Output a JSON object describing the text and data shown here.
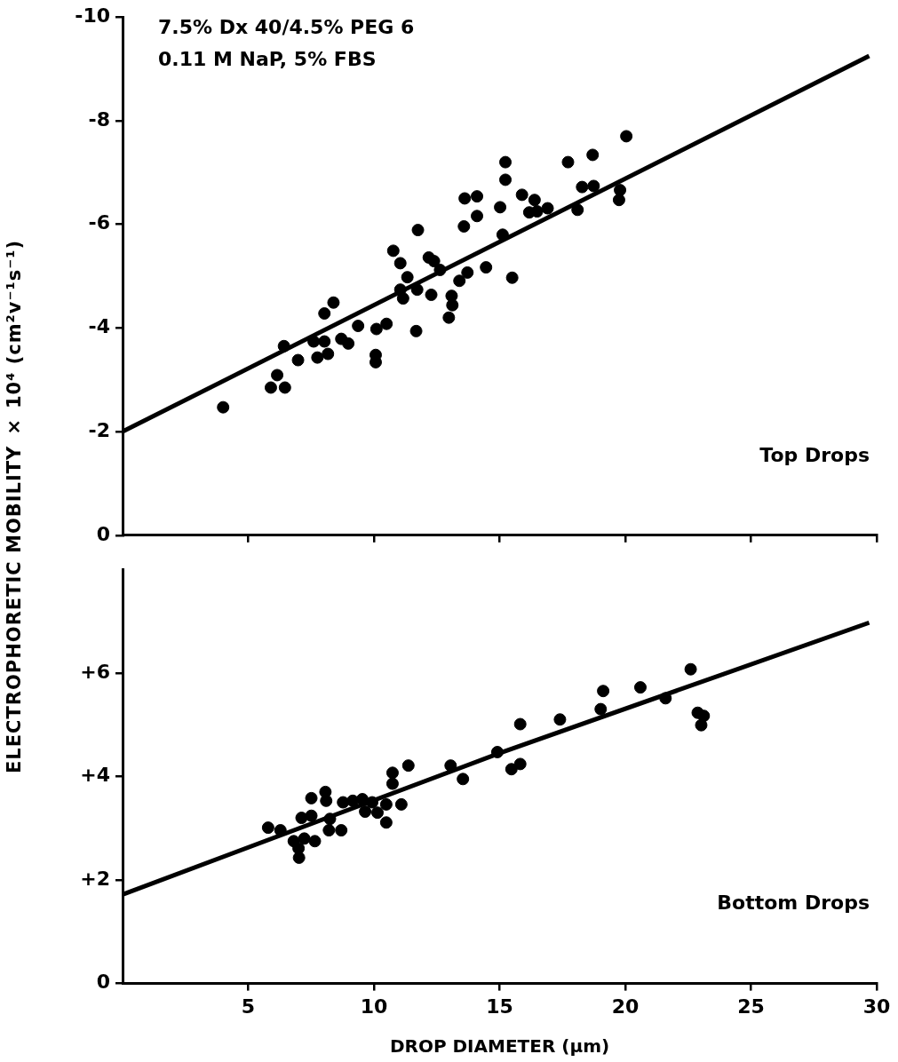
{
  "chart_data": [
    {
      "type": "scatter",
      "ylabel": "ELECTROPHORETIC MOBILITY × 10⁴ (cm²v⁻¹s⁻¹)",
      "annotations": [
        "7.5% Dx 40/4.5% PEG 6",
        "0.11 M NaP, 5% FBS",
        "Top Drops"
      ],
      "xlim": [
        0,
        30
      ],
      "xticks": [
        5,
        10,
        15,
        20,
        25,
        30
      ],
      "ylim": [
        0,
        -10
      ],
      "yticks": [
        0,
        -2,
        -4,
        -6,
        -8,
        -10
      ],
      "tick_labels": "y",
      "grid": false,
      "legend": false,
      "marker": "circle",
      "series": [
        {
          "type": "scatter",
          "color": "#000000",
          "x": [
            4.0,
            5.9,
            6.46,
            6.15,
            6.42,
            6.98,
            7.75,
            8.17,
            8.03,
            8.03,
            8.39,
            7.6,
            8.7,
            8.98,
            9.37,
            10.07,
            10.07,
            10.1,
            10.5,
            11.68,
            10.77,
            11.05,
            11.33,
            11.05,
            11.16,
            11.75,
            11.72,
            12.39,
            12.28,
            12.63,
            12.18,
            12.98,
            13.09,
            13.12,
            13.4,
            13.72,
            14.46,
            15.5,
            13.61,
            14.1,
            14.1,
            13.58,
            15.02,
            15.12,
            15.23,
            15.23,
            15.89,
            16.39,
            16.18,
            16.49,
            16.91,
            17.72,
            18.1,
            18.28,
            18.7,
            18.74,
            19.79,
            19.75,
            20.04
          ],
          "values": [
            -2.47,
            -2.85,
            -2.85,
            -3.09,
            -3.65,
            -3.38,
            -3.43,
            -3.5,
            -3.74,
            -4.28,
            -4.49,
            -3.74,
            -3.79,
            -3.7,
            -4.04,
            -3.48,
            -3.34,
            -3.98,
            -4.08,
            -3.94,
            -5.49,
            -5.25,
            -4.98,
            -4.74,
            -4.57,
            -5.89,
            -4.74,
            -5.29,
            -4.64,
            -5.12,
            -5.36,
            -4.2,
            -4.62,
            -4.44,
            -4.91,
            -5.07,
            -5.17,
            -4.97,
            -6.5,
            -6.54,
            -6.16,
            -5.96,
            -6.33,
            -5.8,
            -7.2,
            -6.86,
            -6.57,
            -6.47,
            -6.23,
            -6.25,
            -6.31,
            -7.2,
            -6.28,
            -6.72,
            -7.34,
            -6.74,
            -6.66,
            -6.47,
            -7.7
          ]
        },
        {
          "type": "line",
          "color": "#000000",
          "marker": "none",
          "x": [
            0,
            29.7
          ],
          "values": [
            -2.0,
            -9.25
          ]
        }
      ]
    },
    {
      "type": "scatter",
      "xlabel": "DROP DIAMETER (μm)",
      "annotations": [
        "Bottom Drops"
      ],
      "xlim": [
        0,
        30
      ],
      "xticks": [
        5,
        10,
        15,
        20,
        25,
        30
      ],
      "ylim": [
        0,
        8
      ],
      "yticks": [
        0,
        {
          "value": 2,
          "label": "+2"
        },
        {
          "value": 4,
          "label": "+4"
        },
        {
          "value": 6,
          "label": "+6"
        }
      ],
      "grid": false,
      "legend": false,
      "marker": "circle",
      "series": [
        {
          "type": "scatter",
          "color": "#000000",
          "x": [
            5.79,
            6.28,
            6.81,
            7.02,
            7.0,
            7.23,
            7.65,
            7.12,
            7.51,
            7.51,
            8.07,
            8.1,
            8.25,
            8.21,
            8.7,
            8.77,
            9.16,
            9.54,
            9.65,
            9.93,
            10.14,
            10.49,
            10.49,
            10.74,
            10.74,
            11.09,
            11.37,
            13.05,
            13.54,
            14.91,
            15.82,
            15.47,
            15.82,
            17.4,
            19.12,
            19.02,
            20.6,
            21.6,
            22.6,
            22.88,
            23.12,
            23.02
          ],
          "values": [
            3.01,
            2.96,
            2.75,
            2.43,
            2.61,
            2.8,
            2.75,
            3.2,
            3.24,
            3.58,
            3.7,
            3.53,
            3.18,
            2.96,
            2.96,
            3.5,
            3.53,
            3.56,
            3.32,
            3.5,
            3.3,
            3.46,
            3.11,
            4.07,
            3.86,
            3.46,
            4.21,
            4.21,
            3.95,
            4.47,
            5.01,
            4.14,
            4.24,
            5.1,
            5.65,
            5.3,
            5.72,
            5.51,
            6.07,
            5.23,
            5.17,
            4.99
          ]
        },
        {
          "type": "line",
          "color": "#000000",
          "marker": "none",
          "x": [
            0,
            15,
            29.7
          ],
          "values": [
            1.72,
            4.45,
            6.97
          ]
        }
      ]
    }
  ]
}
